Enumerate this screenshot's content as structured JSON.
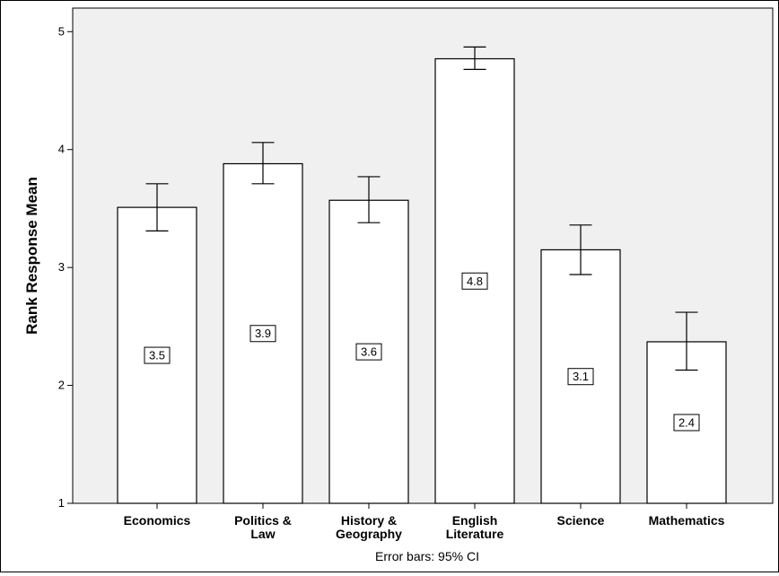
{
  "chart_data": {
    "type": "bar",
    "categories": [
      [
        "Economics"
      ],
      [
        "Politics &",
        "Law"
      ],
      [
        "History &",
        "Geography"
      ],
      [
        "English",
        "Literature"
      ],
      [
        "Science"
      ],
      [
        "Mathematics"
      ]
    ],
    "values": [
      3.51,
      3.88,
      3.57,
      4.77,
      3.15,
      2.37
    ],
    "value_labels": [
      "3.5",
      "3.9",
      "3.6",
      "4.8",
      "3.1",
      "2.4"
    ],
    "error_bars": {
      "type": "95% CI",
      "lower": [
        3.31,
        3.71,
        3.38,
        4.68,
        2.94,
        2.13
      ],
      "upper": [
        3.71,
        4.06,
        3.77,
        4.87,
        3.36,
        2.62
      ]
    },
    "ylabel": "Rank Response Mean",
    "xlabel": "",
    "ylim": [
      1,
      5.2
    ],
    "yticks": [
      1,
      2,
      3,
      4,
      5
    ],
    "footnote": "Error bars: 95% CI",
    "grid": false,
    "colors": {
      "plot_background": "#f0f0f0",
      "bar_fill": "#ffffff",
      "bar_stroke": "#000000",
      "axis": "#000000"
    }
  }
}
